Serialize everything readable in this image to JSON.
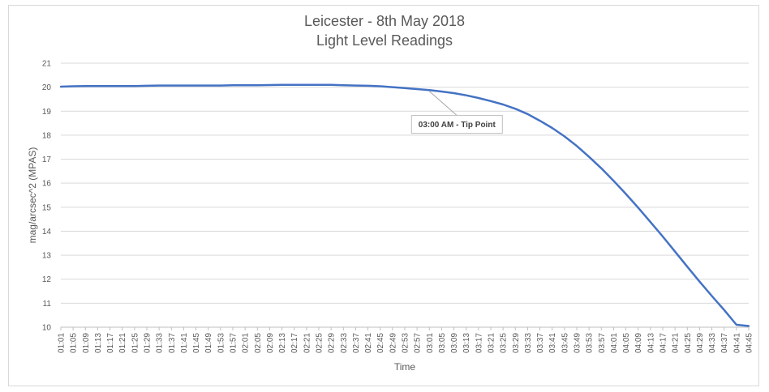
{
  "chart_data": {
    "type": "line",
    "title": "Leicester - 8th May 2018",
    "subtitle": "Light Level Readings",
    "xlabel": "Time",
    "ylabel": "mag/arcsec^2 (MPAS)",
    "ylim": [
      10,
      21
    ],
    "yticks": [
      10,
      11,
      12,
      13,
      14,
      15,
      16,
      17,
      18,
      19,
      20,
      21
    ],
    "grid": true,
    "legend": "none",
    "line_color": "#4472c4",
    "categories": [
      "01:01",
      "01:05",
      "01:09",
      "01:13",
      "01:17",
      "01:21",
      "01:25",
      "01:29",
      "01:33",
      "01:37",
      "01:41",
      "01:45",
      "01:49",
      "01:53",
      "01:57",
      "02:01",
      "02:05",
      "02:09",
      "02:13",
      "02:17",
      "02:21",
      "02:25",
      "02:29",
      "02:33",
      "02:37",
      "02:41",
      "02:45",
      "02:49",
      "02:53",
      "02:57",
      "03:01",
      "03:05",
      "03:09",
      "03:13",
      "03:17",
      "03:21",
      "03:25",
      "03:29",
      "03:33",
      "03:37",
      "03:41",
      "03:45",
      "03:49",
      "03:53",
      "03:57",
      "04:01",
      "04:05",
      "04:09",
      "04:13",
      "04:17",
      "04:21",
      "04:25",
      "04:29",
      "04:33",
      "04:37",
      "04:41",
      "04:45"
    ],
    "series": [
      {
        "values": [
          20.02,
          20.04,
          20.05,
          20.05,
          20.05,
          20.05,
          20.05,
          20.06,
          20.07,
          20.07,
          20.07,
          20.07,
          20.07,
          20.07,
          20.08,
          20.08,
          20.08,
          20.09,
          20.1,
          20.1,
          20.1,
          20.1,
          20.1,
          20.08,
          20.07,
          20.06,
          20.04,
          20.0,
          19.96,
          19.92,
          19.88,
          19.82,
          19.75,
          19.66,
          19.55,
          19.42,
          19.28,
          19.1,
          18.88,
          18.6,
          18.3,
          17.95,
          17.55,
          17.1,
          16.62,
          16.1,
          15.55,
          14.98,
          14.38,
          13.78,
          13.15,
          12.52,
          11.9,
          11.3,
          10.72,
          10.1,
          10.05
        ]
      }
    ],
    "annotations": [
      {
        "text": "03:00 AM - Tip Point",
        "x": "03:01",
        "y": 19.9
      }
    ]
  }
}
